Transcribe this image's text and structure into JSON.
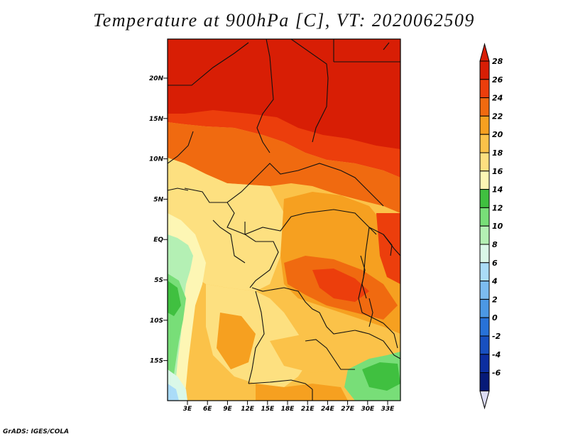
{
  "title": "Temperature at 900hPa [C], VT: 2020062509",
  "footer": "GrADS: IGES/COLA",
  "map": {
    "lat_labels": [
      "20N",
      "15N",
      "10N",
      "5N",
      "EQ",
      "5S",
      "10S",
      "15S"
    ],
    "lon_labels": [
      "3E",
      "6E",
      "9E",
      "12E",
      "15E",
      "18E",
      "21E",
      "24E",
      "27E",
      "30E",
      "33E"
    ]
  },
  "colorbar": {
    "labels": [
      "28",
      "26",
      "24",
      "22",
      "20",
      "18",
      "16",
      "14",
      "12",
      "10",
      "8",
      "6",
      "4",
      "2",
      "0",
      "-2",
      "-4",
      "-6"
    ],
    "colors": [
      "#d81e05",
      "#ec3e0c",
      "#f06a10",
      "#f6a020",
      "#fbc249",
      "#fde080",
      "#fdf6b4",
      "#40c040",
      "#78de78",
      "#b4f0b4",
      "#daf8e8",
      "#aadcf8",
      "#7cbcf0",
      "#4c98e4",
      "#2872d8",
      "#1850c0",
      "#0c2ea0",
      "#061a78"
    ],
    "top_arrow_color": "#d81e05",
    "bottom_arrow_color": "#dcdcf4"
  },
  "chart_data": {
    "type": "heatmap",
    "title": "Temperature at 900hPa [C], VT: 2020062509",
    "variable": "Temperature",
    "level": "900hPa",
    "units": "C",
    "valid_time": "2020062509",
    "x_ticks": [
      "3E",
      "6E",
      "9E",
      "12E",
      "15E",
      "18E",
      "21E",
      "24E",
      "27E",
      "30E",
      "33E"
    ],
    "y_ticks": [
      "20N",
      "15N",
      "10N",
      "5N",
      "EQ",
      "5S",
      "10S",
      "15S"
    ],
    "color_levels": [
      -6,
      -4,
      -2,
      0,
      2,
      4,
      6,
      8,
      10,
      12,
      14,
      16,
      18,
      20,
      22,
      24,
      26,
      28
    ]
  }
}
